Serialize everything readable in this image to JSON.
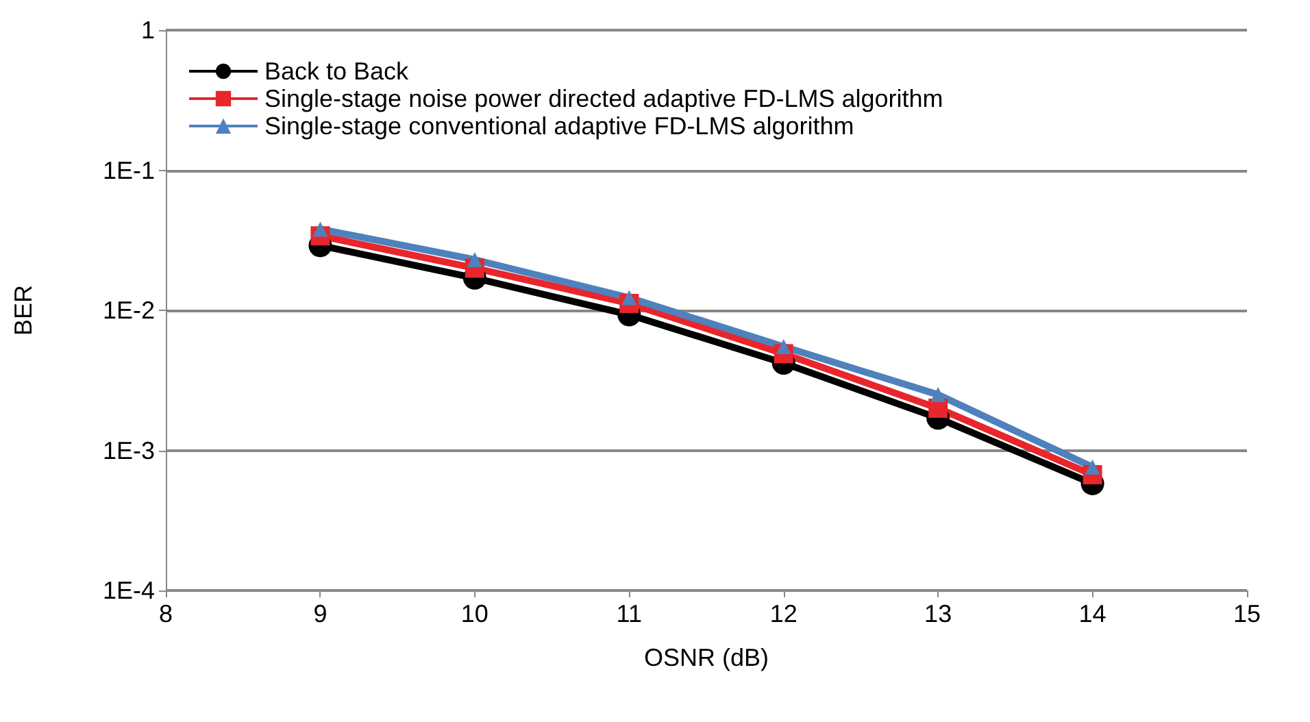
{
  "chart_data": {
    "type": "line",
    "xlabel": "OSNR (dB)",
    "ylabel": "BER",
    "log": "y",
    "grid": "y",
    "legend": "top left",
    "x": [
      9,
      10,
      11,
      12,
      13,
      14
    ],
    "xlim": [
      8,
      15
    ],
    "xticks": [
      8,
      9,
      10,
      11,
      12,
      13,
      14,
      15
    ],
    "ylim": [
      0.0001,
      1
    ],
    "yticks": [
      {
        "value": 0.0001,
        "label": "1E-4"
      },
      {
        "value": 0.001,
        "label": "1E-3"
      },
      {
        "value": 0.01,
        "label": "1E-2"
      },
      {
        "value": 0.1,
        "label": "1E-1"
      },
      {
        "value": 1,
        "label": "1"
      }
    ],
    "series": [
      {
        "name": "Back to Back",
        "color": "#000000",
        "marker": "circle",
        "values": [
          0.029,
          0.017,
          0.0093,
          0.0042,
          0.0017,
          0.00058
        ]
      },
      {
        "name": "Single-stage noise power directed adaptive FD-LMS algorithm",
        "color": "#e8262c",
        "marker": "square",
        "values": [
          0.034,
          0.02,
          0.0112,
          0.0049,
          0.002,
          0.00067
        ]
      },
      {
        "name": "Single-stage conventional adaptive FD-LMS algorithm",
        "color": "#4f81bd",
        "marker": "triangle",
        "values": [
          0.038,
          0.023,
          0.0123,
          0.0055,
          0.0025,
          0.00076
        ]
      }
    ]
  }
}
